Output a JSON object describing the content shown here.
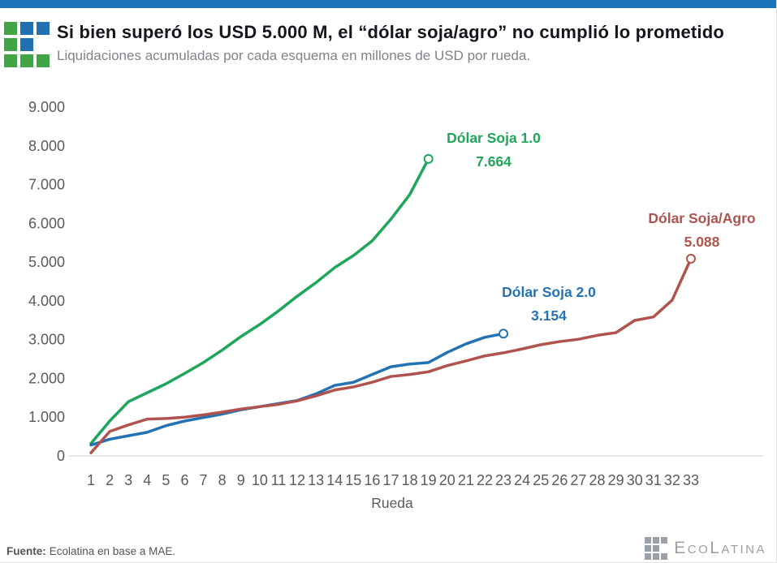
{
  "header": {
    "title": "Si bien superó los USD 5.000 M, el “dólar soja/agro” no cumplió lo prometido",
    "subtitle": "Liquidaciones acumuladas por cada esquema en millones de USD por rueda."
  },
  "footer": {
    "source_label": "Fuente:",
    "source_text": "Ecolatina en base a MAE.",
    "brand": "EcoLatina"
  },
  "colors": {
    "topbar": "#1b74b9",
    "logo_green": "#43a447",
    "logo_blue": "#2170b2",
    "title": "#15151e",
    "subtitle": "#82828a",
    "tick": "#5a5a5a",
    "axis_line": "#cfcfcf",
    "brand_gray": "#9aa0a7"
  },
  "chart_data": {
    "type": "line",
    "title": "Si bien superó los USD 5.000 M, el “dólar soja/agro” no cumplió lo prometido",
    "subtitle": "Liquidaciones acumuladas por cada esquema en millones de USD por rueda.",
    "xlabel": "Rueda",
    "ylabel": "",
    "ylim": [
      0,
      9000
    ],
    "grid": false,
    "legend_position": "inline-annotations",
    "x": [
      1,
      2,
      3,
      4,
      5,
      6,
      7,
      8,
      9,
      10,
      11,
      12,
      13,
      14,
      15,
      16,
      17,
      18,
      19,
      20,
      21,
      22,
      23,
      24,
      25,
      26,
      27,
      28,
      29,
      30,
      31,
      32,
      33
    ],
    "y_tick_labels": [
      "0",
      "1.000",
      "2.000",
      "3.000",
      "4.000",
      "5.000",
      "6.000",
      "7.000",
      "8.000",
      "9.000"
    ],
    "series": [
      {
        "name": "Dólar Soja 1.0",
        "end_label": "7.664",
        "end_value": 7664,
        "color": "#1ea65b",
        "values": [
          320,
          900,
          1400,
          1630,
          1860,
          2130,
          2410,
          2730,
          3080,
          3390,
          3740,
          4120,
          4470,
          4860,
          5170,
          5550,
          6110,
          6740,
          7664
        ]
      },
      {
        "name": "Dólar Soja 2.0",
        "end_label": "3.154",
        "end_value": 3154,
        "color": "#2272b4",
        "values": [
          280,
          430,
          520,
          610,
          780,
          900,
          990,
          1080,
          1190,
          1270,
          1350,
          1430,
          1600,
          1820,
          1900,
          2100,
          2300,
          2370,
          2410,
          2670,
          2890,
          3060,
          3154
        ]
      },
      {
        "name": "Dólar Soja/Agro",
        "end_label": "5.088",
        "end_value": 5088,
        "color": "#b0534e",
        "values": [
          80,
          630,
          800,
          950,
          965,
          1000,
          1060,
          1130,
          1210,
          1270,
          1330,
          1420,
          1550,
          1700,
          1780,
          1900,
          2050,
          2100,
          2170,
          2330,
          2450,
          2580,
          2660,
          2760,
          2870,
          2950,
          3010,
          3110,
          3180,
          3495,
          3585,
          4020,
          5088
        ]
      }
    ]
  }
}
